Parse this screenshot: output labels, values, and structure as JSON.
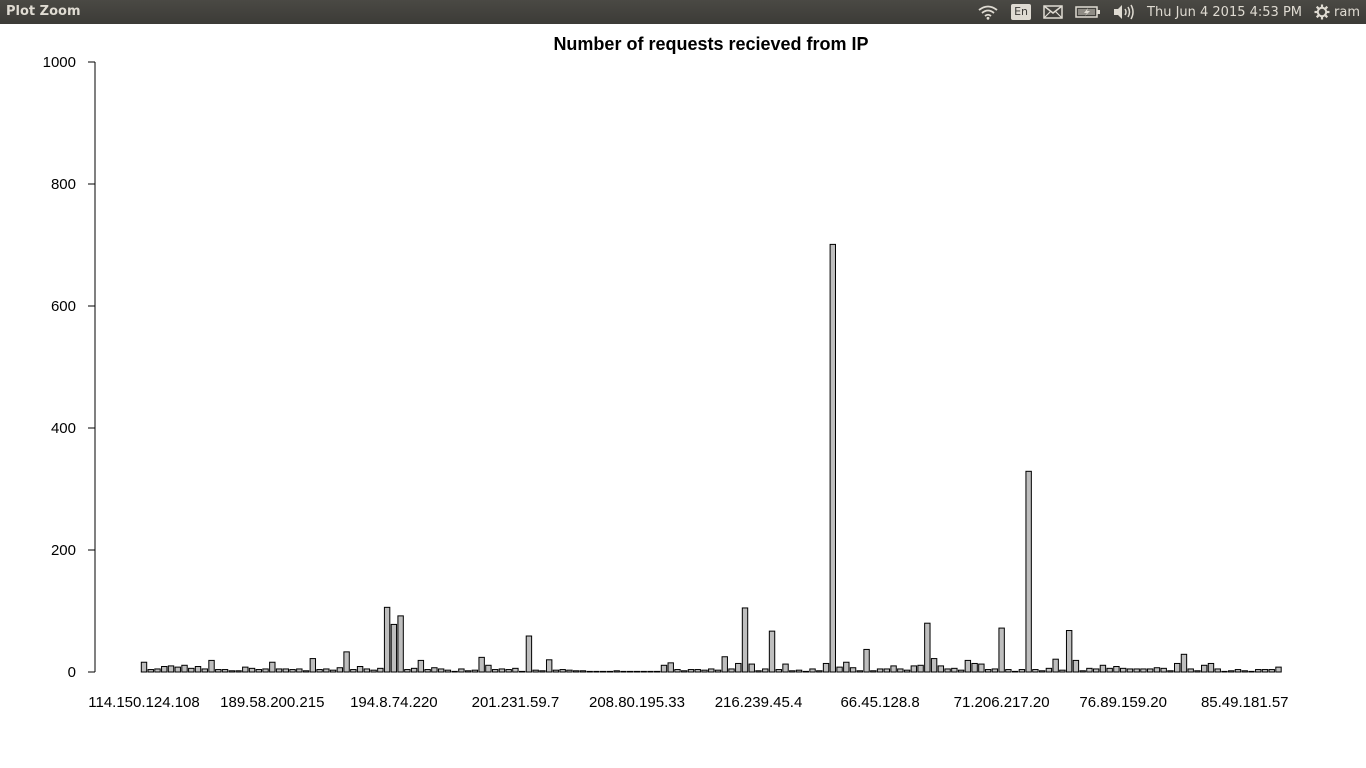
{
  "window": {
    "title": "Plot Zoom"
  },
  "topbar": {
    "icons": [
      "wifi-icon",
      "keyboard-layout-icon",
      "mail-icon",
      "battery-icon",
      "volume-icon",
      "gear-icon"
    ],
    "language": "En",
    "clock": "Thu Jun  4 2015  4:53 PM",
    "user": "ram"
  },
  "chart_data": {
    "type": "bar",
    "title": "Number of requests recieved from IP",
    "xlabel": "",
    "ylabel": "",
    "ylim": [
      0,
      1000
    ],
    "yticks": [
      0,
      200,
      400,
      600,
      800,
      1000
    ],
    "category_labels": [
      {
        "index": 0,
        "label": "114.150.124.108"
      },
      {
        "index": 19,
        "label": "189.58.200.215"
      },
      {
        "index": 37,
        "label": "194.8.74.220"
      },
      {
        "index": 55,
        "label": "201.231.59.7"
      },
      {
        "index": 73,
        "label": "208.80.195.33"
      },
      {
        "index": 91,
        "label": "216.239.45.4"
      },
      {
        "index": 109,
        "label": "66.45.128.8"
      },
      {
        "index": 127,
        "label": "71.206.217.20"
      },
      {
        "index": 145,
        "label": "76.89.159.20"
      },
      {
        "index": 163,
        "label": "85.49.181.57"
      }
    ],
    "values": [
      16,
      4,
      5,
      9,
      10,
      8,
      11,
      6,
      9,
      5,
      19,
      4,
      4,
      2,
      2,
      8,
      6,
      4,
      5,
      16,
      5,
      5,
      4,
      5,
      2,
      22,
      4,
      5,
      3,
      7,
      33,
      4,
      9,
      5,
      3,
      6,
      106,
      78,
      92,
      4,
      6,
      19,
      4,
      7,
      5,
      3,
      1,
      5,
      2,
      3,
      24,
      11,
      4,
      5,
      4,
      6,
      1,
      59,
      3,
      2,
      20,
      3,
      4,
      3,
      2,
      2,
      1,
      1,
      1,
      1,
      2,
      1,
      1,
      1,
      1,
      1,
      1,
      11,
      15,
      4,
      2,
      4,
      4,
      3,
      5,
      3,
      25,
      5,
      14,
      105,
      13,
      2,
      5,
      67,
      4,
      13,
      2,
      3,
      1,
      5,
      2,
      14,
      701,
      8,
      16,
      7,
      2,
      37,
      2,
      5,
      5,
      10,
      5,
      3,
      10,
      11,
      80,
      22,
      10,
      5,
      6,
      3,
      19,
      14,
      13,
      4,
      5,
      72,
      4,
      1,
      4,
      329,
      4,
      2,
      6,
      21,
      3,
      68,
      19,
      2,
      6,
      5,
      11,
      6,
      9,
      6,
      5,
      5,
      5,
      5,
      7,
      6,
      2,
      14,
      29,
      5,
      2,
      11,
      14,
      5,
      1,
      2,
      4,
      2,
      1,
      4,
      4,
      4,
      8
    ]
  }
}
